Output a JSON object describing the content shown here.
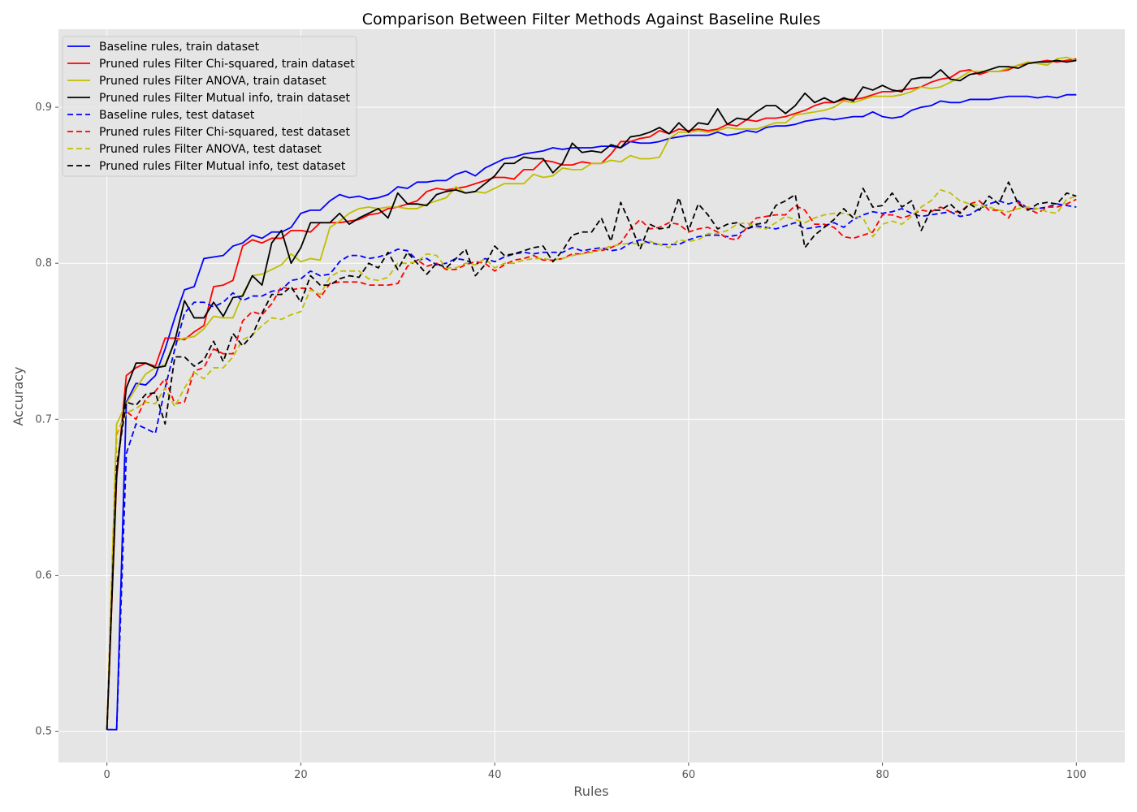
{
  "chart_data": {
    "type": "line",
    "title": "Comparison Between Filter Methods Against Baseline Rules",
    "xlabel": "Rules",
    "ylabel": "Accuracy",
    "xlim": [
      -5,
      105
    ],
    "ylim": [
      0.48,
      0.95
    ],
    "xticks": [
      0,
      20,
      40,
      60,
      80,
      100
    ],
    "yticks": [
      0.5,
      0.6,
      0.7,
      0.8,
      0.9
    ],
    "ytick_labels": [
      "0.5",
      "0.6",
      "0.7",
      "0.8",
      "0.9"
    ],
    "grid": true,
    "legend_position": "upper-left",
    "x": [
      0,
      1,
      2,
      3,
      4,
      5,
      6,
      7,
      8,
      9,
      10,
      11,
      12,
      13,
      14,
      15,
      16,
      17,
      18,
      19,
      20,
      21,
      22,
      23,
      24,
      25,
      26,
      27,
      28,
      29,
      30,
      31,
      32,
      33,
      34,
      35,
      36,
      37,
      38,
      39,
      40,
      41,
      42,
      43,
      44,
      45,
      46,
      47,
      48,
      49,
      50,
      51,
      52,
      53,
      54,
      55,
      56,
      57,
      58,
      59,
      60,
      61,
      62,
      63,
      64,
      65,
      66,
      67,
      68,
      69,
      70,
      71,
      72,
      73,
      74,
      75,
      76,
      77,
      78,
      79,
      80,
      81,
      82,
      83,
      84,
      85,
      86,
      87,
      88,
      89,
      90,
      91,
      92,
      93,
      94,
      95,
      96,
      97,
      98,
      99,
      100
    ],
    "series": [
      {
        "name": "Baseline rules, train dataset",
        "color": "#0000ff",
        "dash": "solid",
        "values": [
          0.501,
          0.501,
          0.711,
          0.723,
          0.722,
          0.728,
          0.745,
          0.765,
          0.783,
          0.785,
          0.803,
          0.804,
          0.805,
          0.811,
          0.813,
          0.818,
          0.816,
          0.82,
          0.82,
          0.823,
          0.832,
          0.834,
          0.834,
          0.84,
          0.844,
          0.842,
          0.843,
          0.841,
          0.842,
          0.844,
          0.849,
          0.848,
          0.852,
          0.852,
          0.853,
          0.853,
          0.857,
          0.859,
          0.856,
          0.861,
          0.864,
          0.867,
          0.868,
          0.87,
          0.871,
          0.872,
          0.874,
          0.873,
          0.874,
          0.874,
          0.874,
          0.875,
          0.875,
          0.874,
          0.878,
          0.877,
          0.877,
          0.878,
          0.88,
          0.881,
          0.882,
          0.882,
          0.882,
          0.884,
          0.882,
          0.883,
          0.885,
          0.884,
          0.887,
          0.888,
          0.888,
          0.889,
          0.891,
          0.892,
          0.893,
          0.892,
          0.893,
          0.894,
          0.894,
          0.897,
          0.894,
          0.893,
          0.894,
          0.898,
          0.9,
          0.901,
          0.904,
          0.903,
          0.903,
          0.905,
          0.905,
          0.905,
          0.906,
          0.907,
          0.907,
          0.907,
          0.906,
          0.907,
          0.906,
          0.908,
          0.908
        ]
      },
      {
        "name": "Pruned rules Filter Chi-squared, train dataset",
        "color": "#ff0000",
        "dash": "solid",
        "values": [
          0.501,
          0.662,
          0.728,
          0.733,
          0.736,
          0.734,
          0.752,
          0.752,
          0.751,
          0.756,
          0.76,
          0.785,
          0.786,
          0.789,
          0.811,
          0.815,
          0.813,
          0.816,
          0.816,
          0.821,
          0.821,
          0.82,
          0.826,
          0.826,
          0.826,
          0.827,
          0.828,
          0.831,
          0.832,
          0.835,
          0.836,
          0.838,
          0.84,
          0.846,
          0.848,
          0.847,
          0.848,
          0.849,
          0.851,
          0.853,
          0.855,
          0.855,
          0.854,
          0.86,
          0.86,
          0.866,
          0.865,
          0.863,
          0.863,
          0.865,
          0.864,
          0.864,
          0.87,
          0.878,
          0.878,
          0.88,
          0.881,
          0.885,
          0.883,
          0.886,
          0.885,
          0.886,
          0.885,
          0.886,
          0.889,
          0.888,
          0.892,
          0.891,
          0.893,
          0.893,
          0.894,
          0.896,
          0.898,
          0.901,
          0.903,
          0.903,
          0.905,
          0.905,
          0.906,
          0.908,
          0.91,
          0.91,
          0.911,
          0.912,
          0.913,
          0.916,
          0.918,
          0.919,
          0.923,
          0.924,
          0.921,
          0.923,
          0.923,
          0.924,
          0.927,
          0.928,
          0.929,
          0.93,
          0.929,
          0.93,
          0.931
        ]
      },
      {
        "name": "Pruned rules Filter ANOVA, train dataset",
        "color": "#bfbf00",
        "dash": "solid",
        "values": [
          0.501,
          0.697,
          0.71,
          0.72,
          0.729,
          0.733,
          0.735,
          0.75,
          0.752,
          0.753,
          0.758,
          0.766,
          0.765,
          0.765,
          0.78,
          0.792,
          0.793,
          0.796,
          0.799,
          0.806,
          0.801,
          0.803,
          0.802,
          0.823,
          0.827,
          0.832,
          0.835,
          0.836,
          0.835,
          0.836,
          0.836,
          0.835,
          0.835,
          0.838,
          0.84,
          0.842,
          0.849,
          0.845,
          0.846,
          0.845,
          0.848,
          0.851,
          0.851,
          0.851,
          0.857,
          0.855,
          0.856,
          0.861,
          0.86,
          0.86,
          0.864,
          0.864,
          0.866,
          0.865,
          0.869,
          0.867,
          0.867,
          0.868,
          0.88,
          0.884,
          0.884,
          0.885,
          0.884,
          0.885,
          0.887,
          0.886,
          0.886,
          0.886,
          0.888,
          0.89,
          0.89,
          0.895,
          0.896,
          0.897,
          0.898,
          0.9,
          0.904,
          0.903,
          0.905,
          0.907,
          0.907,
          0.907,
          0.908,
          0.91,
          0.913,
          0.912,
          0.913,
          0.916,
          0.919,
          0.923,
          0.923,
          0.923,
          0.923,
          0.925,
          0.927,
          0.929,
          0.928,
          0.927,
          0.931,
          0.932,
          0.93
        ]
      },
      {
        "name": "Pruned rules Filter Mutual info, train dataset",
        "color": "#000000",
        "dash": "solid",
        "values": [
          0.501,
          0.665,
          0.72,
          0.736,
          0.736,
          0.733,
          0.734,
          0.75,
          0.776,
          0.765,
          0.765,
          0.775,
          0.766,
          0.778,
          0.779,
          0.792,
          0.786,
          0.813,
          0.821,
          0.8,
          0.81,
          0.826,
          0.826,
          0.826,
          0.832,
          0.825,
          0.829,
          0.832,
          0.835,
          0.829,
          0.845,
          0.838,
          0.838,
          0.837,
          0.844,
          0.846,
          0.847,
          0.845,
          0.846,
          0.851,
          0.856,
          0.864,
          0.864,
          0.868,
          0.867,
          0.867,
          0.858,
          0.864,
          0.877,
          0.871,
          0.872,
          0.871,
          0.876,
          0.874,
          0.881,
          0.882,
          0.884,
          0.887,
          0.883,
          0.89,
          0.884,
          0.89,
          0.889,
          0.899,
          0.889,
          0.893,
          0.892,
          0.897,
          0.901,
          0.901,
          0.896,
          0.901,
          0.909,
          0.903,
          0.906,
          0.903,
          0.906,
          0.904,
          0.913,
          0.911,
          0.914,
          0.911,
          0.91,
          0.918,
          0.919,
          0.919,
          0.924,
          0.918,
          0.917,
          0.921,
          0.922,
          0.924,
          0.926,
          0.926,
          0.925,
          0.928,
          0.929,
          0.929,
          0.93,
          0.929,
          0.93
        ]
      },
      {
        "name": "Baseline rules, test dataset",
        "color": "#0000ff",
        "dash": "dashed",
        "values": [
          0.501,
          0.501,
          0.678,
          0.697,
          0.694,
          0.691,
          0.72,
          0.745,
          0.768,
          0.775,
          0.775,
          0.772,
          0.775,
          0.781,
          0.776,
          0.779,
          0.779,
          0.782,
          0.783,
          0.789,
          0.79,
          0.795,
          0.792,
          0.793,
          0.801,
          0.805,
          0.805,
          0.803,
          0.804,
          0.806,
          0.809,
          0.808,
          0.802,
          0.803,
          0.799,
          0.8,
          0.803,
          0.802,
          0.799,
          0.803,
          0.801,
          0.804,
          0.806,
          0.807,
          0.806,
          0.807,
          0.807,
          0.807,
          0.81,
          0.808,
          0.809,
          0.81,
          0.808,
          0.809,
          0.813,
          0.815,
          0.813,
          0.812,
          0.812,
          0.812,
          0.815,
          0.817,
          0.818,
          0.818,
          0.817,
          0.818,
          0.822,
          0.824,
          0.823,
          0.822,
          0.824,
          0.826,
          0.822,
          0.823,
          0.824,
          0.826,
          0.823,
          0.828,
          0.831,
          0.833,
          0.832,
          0.833,
          0.835,
          0.832,
          0.83,
          0.831,
          0.832,
          0.833,
          0.83,
          0.831,
          0.835,
          0.838,
          0.84,
          0.838,
          0.84,
          0.835,
          0.835,
          0.836,
          0.838,
          0.837,
          0.836
        ]
      },
      {
        "name": "Pruned rules Filter Chi-squared, test dataset",
        "color": "#ff0000",
        "dash": "dashed",
        "values": [
          0.501,
          0.69,
          0.705,
          0.7,
          0.713,
          0.718,
          0.726,
          0.71,
          0.711,
          0.731,
          0.733,
          0.745,
          0.742,
          0.742,
          0.763,
          0.769,
          0.767,
          0.774,
          0.785,
          0.783,
          0.784,
          0.784,
          0.778,
          0.787,
          0.788,
          0.788,
          0.788,
          0.786,
          0.786,
          0.786,
          0.787,
          0.798,
          0.802,
          0.798,
          0.8,
          0.796,
          0.796,
          0.799,
          0.801,
          0.8,
          0.795,
          0.799,
          0.802,
          0.803,
          0.805,
          0.802,
          0.802,
          0.803,
          0.806,
          0.806,
          0.808,
          0.808,
          0.81,
          0.813,
          0.822,
          0.828,
          0.822,
          0.823,
          0.826,
          0.825,
          0.82,
          0.822,
          0.823,
          0.82,
          0.816,
          0.815,
          0.823,
          0.829,
          0.83,
          0.831,
          0.831,
          0.837,
          0.834,
          0.825,
          0.825,
          0.823,
          0.817,
          0.816,
          0.818,
          0.82,
          0.831,
          0.831,
          0.829,
          0.831,
          0.834,
          0.833,
          0.836,
          0.833,
          0.833,
          0.838,
          0.84,
          0.834,
          0.834,
          0.829,
          0.839,
          0.835,
          0.832,
          0.836,
          0.836,
          0.838,
          0.841
        ]
      },
      {
        "name": "Pruned rules Filter ANOVA, test dataset",
        "color": "#bfbf00",
        "dash": "dashed",
        "values": [
          0.501,
          0.69,
          0.704,
          0.707,
          0.711,
          0.71,
          0.72,
          0.708,
          0.72,
          0.73,
          0.726,
          0.733,
          0.733,
          0.74,
          0.751,
          0.754,
          0.76,
          0.765,
          0.764,
          0.767,
          0.769,
          0.783,
          0.78,
          0.791,
          0.795,
          0.795,
          0.795,
          0.79,
          0.789,
          0.791,
          0.8,
          0.8,
          0.801,
          0.806,
          0.805,
          0.797,
          0.797,
          0.8,
          0.799,
          0.803,
          0.797,
          0.8,
          0.8,
          0.802,
          0.803,
          0.803,
          0.802,
          0.803,
          0.805,
          0.806,
          0.807,
          0.809,
          0.811,
          0.812,
          0.813,
          0.812,
          0.814,
          0.812,
          0.81,
          0.815,
          0.814,
          0.815,
          0.819,
          0.819,
          0.821,
          0.825,
          0.826,
          0.823,
          0.822,
          0.826,
          0.83,
          0.828,
          0.826,
          0.829,
          0.831,
          0.832,
          0.832,
          0.83,
          0.829,
          0.817,
          0.825,
          0.827,
          0.825,
          0.83,
          0.836,
          0.84,
          0.847,
          0.845,
          0.84,
          0.838,
          0.837,
          0.836,
          0.834,
          0.833,
          0.835,
          0.836,
          0.835,
          0.833,
          0.832,
          0.841,
          0.843
        ]
      },
      {
        "name": "Pruned rules Filter Mutual info, test dataset",
        "color": "#000000",
        "dash": "dashed",
        "values": [
          0.501,
          0.67,
          0.711,
          0.709,
          0.716,
          0.717,
          0.697,
          0.74,
          0.74,
          0.734,
          0.738,
          0.75,
          0.737,
          0.755,
          0.747,
          0.754,
          0.768,
          0.78,
          0.78,
          0.785,
          0.775,
          0.792,
          0.786,
          0.786,
          0.79,
          0.792,
          0.791,
          0.8,
          0.797,
          0.807,
          0.796,
          0.807,
          0.8,
          0.793,
          0.8,
          0.797,
          0.803,
          0.809,
          0.792,
          0.799,
          0.811,
          0.805,
          0.806,
          0.808,
          0.81,
          0.811,
          0.801,
          0.808,
          0.818,
          0.82,
          0.82,
          0.829,
          0.814,
          0.839,
          0.825,
          0.809,
          0.825,
          0.822,
          0.823,
          0.842,
          0.821,
          0.838,
          0.831,
          0.822,
          0.825,
          0.826,
          0.822,
          0.825,
          0.826,
          0.837,
          0.84,
          0.844,
          0.81,
          0.818,
          0.823,
          0.828,
          0.835,
          0.829,
          0.848,
          0.836,
          0.837,
          0.845,
          0.836,
          0.84,
          0.821,
          0.834,
          0.834,
          0.838,
          0.832,
          0.838,
          0.834,
          0.843,
          0.838,
          0.852,
          0.838,
          0.834,
          0.838,
          0.839,
          0.838,
          0.845,
          0.843
        ]
      }
    ]
  }
}
